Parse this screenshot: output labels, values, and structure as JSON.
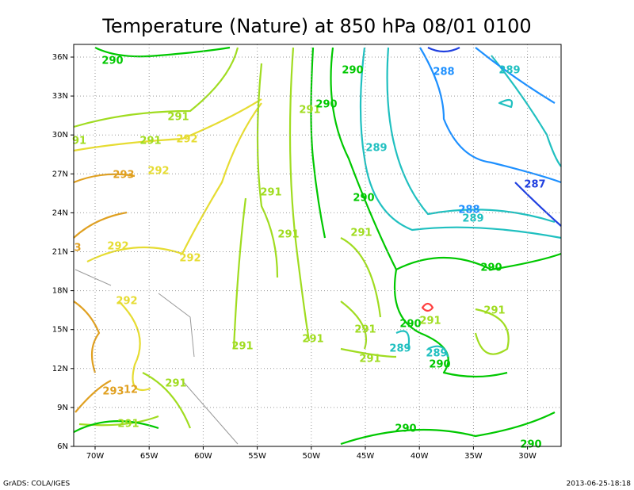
{
  "header": {
    "title": "Temperature (Nature) at 850 hPa 08/01 0100"
  },
  "x_axis": {
    "labels": [
      "70W",
      "65W",
      "60W",
      "55W",
      "50W",
      "45W",
      "40W",
      "35W",
      "30W"
    ]
  },
  "y_axis": {
    "labels": [
      "6N",
      "9N",
      "12N",
      "15N",
      "18N",
      "21N",
      "24N",
      "27N",
      "30N",
      "33N",
      "36N"
    ]
  },
  "contour_labels": [
    "290",
    "290",
    "288",
    "289",
    "291",
    "291",
    "290",
    "91",
    "291",
    "292",
    "289",
    "293",
    "292",
    "291",
    "290",
    "287",
    "288",
    "289",
    "291",
    "291",
    "292",
    "292",
    "3",
    "290",
    "292",
    "291",
    "290",
    "291",
    "291",
    "291",
    "289",
    "289",
    "291",
    "291",
    "290",
    "293",
    "12",
    "291",
    "291",
    "290",
    "290"
  ],
  "footer": {
    "left": "GrADS: COLA/IGES",
    "right": "2013-06-25-18:18"
  }
}
